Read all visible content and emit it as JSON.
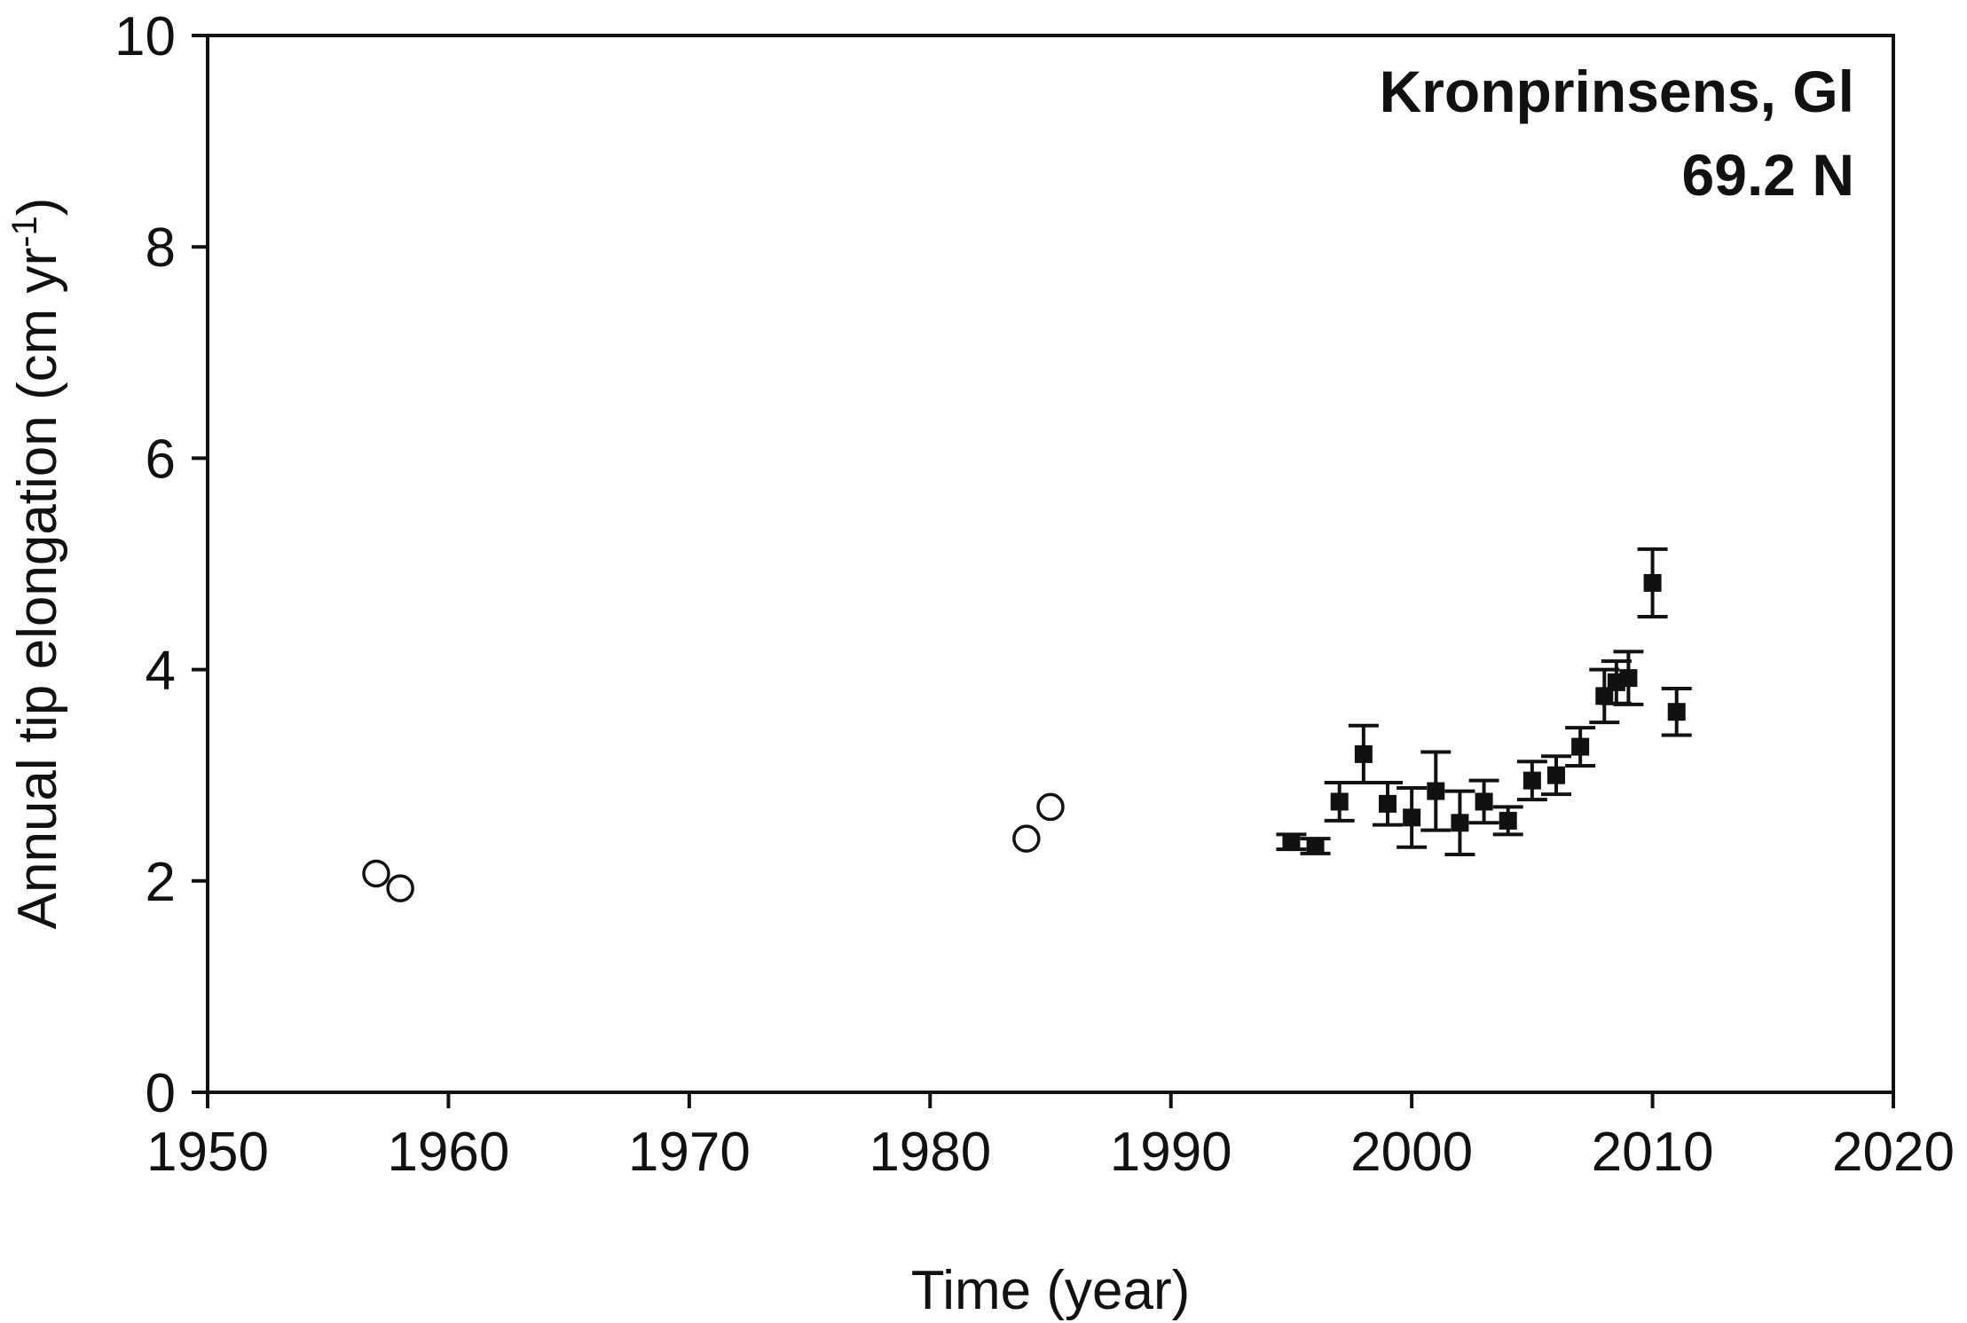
{
  "chart_data": {
    "type": "scatter",
    "title": "",
    "annotation": {
      "line1": "Kronprinsens, Gl",
      "line2": "69.2 N"
    },
    "xlabel": "Time (year)",
    "ylabel": {
      "text": "Annual tip elongation (cm yr",
      "superscript": "-1",
      "close": ")"
    },
    "xlim": [
      1950,
      2020
    ],
    "ylim": [
      0,
      10
    ],
    "x_ticks": [
      1950,
      1960,
      1970,
      1980,
      1990,
      2000,
      2010,
      2020
    ],
    "y_ticks": [
      0,
      2,
      4,
      6,
      8,
      10
    ],
    "grid": false,
    "colors": {
      "axis": "#111111",
      "marker": "#111111",
      "background": "#ffffff"
    },
    "series": [
      {
        "marker": "open-circle",
        "points": [
          {
            "x": 1957,
            "y": 2.07
          },
          {
            "x": 1958,
            "y": 1.93
          },
          {
            "x": 1984,
            "y": 2.4
          },
          {
            "x": 1985,
            "y": 2.7
          }
        ]
      },
      {
        "marker": "filled-square",
        "points": [
          {
            "x": 1995,
            "y": 2.37,
            "err": 0.07
          },
          {
            "x": 1996,
            "y": 2.33,
            "err": 0.07
          },
          {
            "x": 1997,
            "y": 2.75,
            "err": 0.18
          },
          {
            "x": 1998,
            "y": 3.2,
            "err": 0.27
          },
          {
            "x": 1999,
            "y": 2.73,
            "err": 0.2
          },
          {
            "x": 2000,
            "y": 2.6,
            "err": 0.28
          },
          {
            "x": 2001,
            "y": 2.85,
            "err": 0.37
          },
          {
            "x": 2002,
            "y": 2.55,
            "err": 0.3
          },
          {
            "x": 2003,
            "y": 2.75,
            "err": 0.2
          },
          {
            "x": 2004,
            "y": 2.57,
            "err": 0.13
          },
          {
            "x": 2005,
            "y": 2.95,
            "err": 0.18
          },
          {
            "x": 2006,
            "y": 3.0,
            "err": 0.18
          },
          {
            "x": 2007,
            "y": 3.27,
            "err": 0.18
          },
          {
            "x": 2008,
            "y": 3.75,
            "err": 0.25
          },
          {
            "x": 2008.5,
            "y": 3.88,
            "err": 0.2
          },
          {
            "x": 2009,
            "y": 3.92,
            "err": 0.25
          },
          {
            "x": 2010,
            "y": 4.82,
            "err": 0.32
          },
          {
            "x": 2011,
            "y": 3.6,
            "err": 0.22
          }
        ]
      }
    ]
  }
}
